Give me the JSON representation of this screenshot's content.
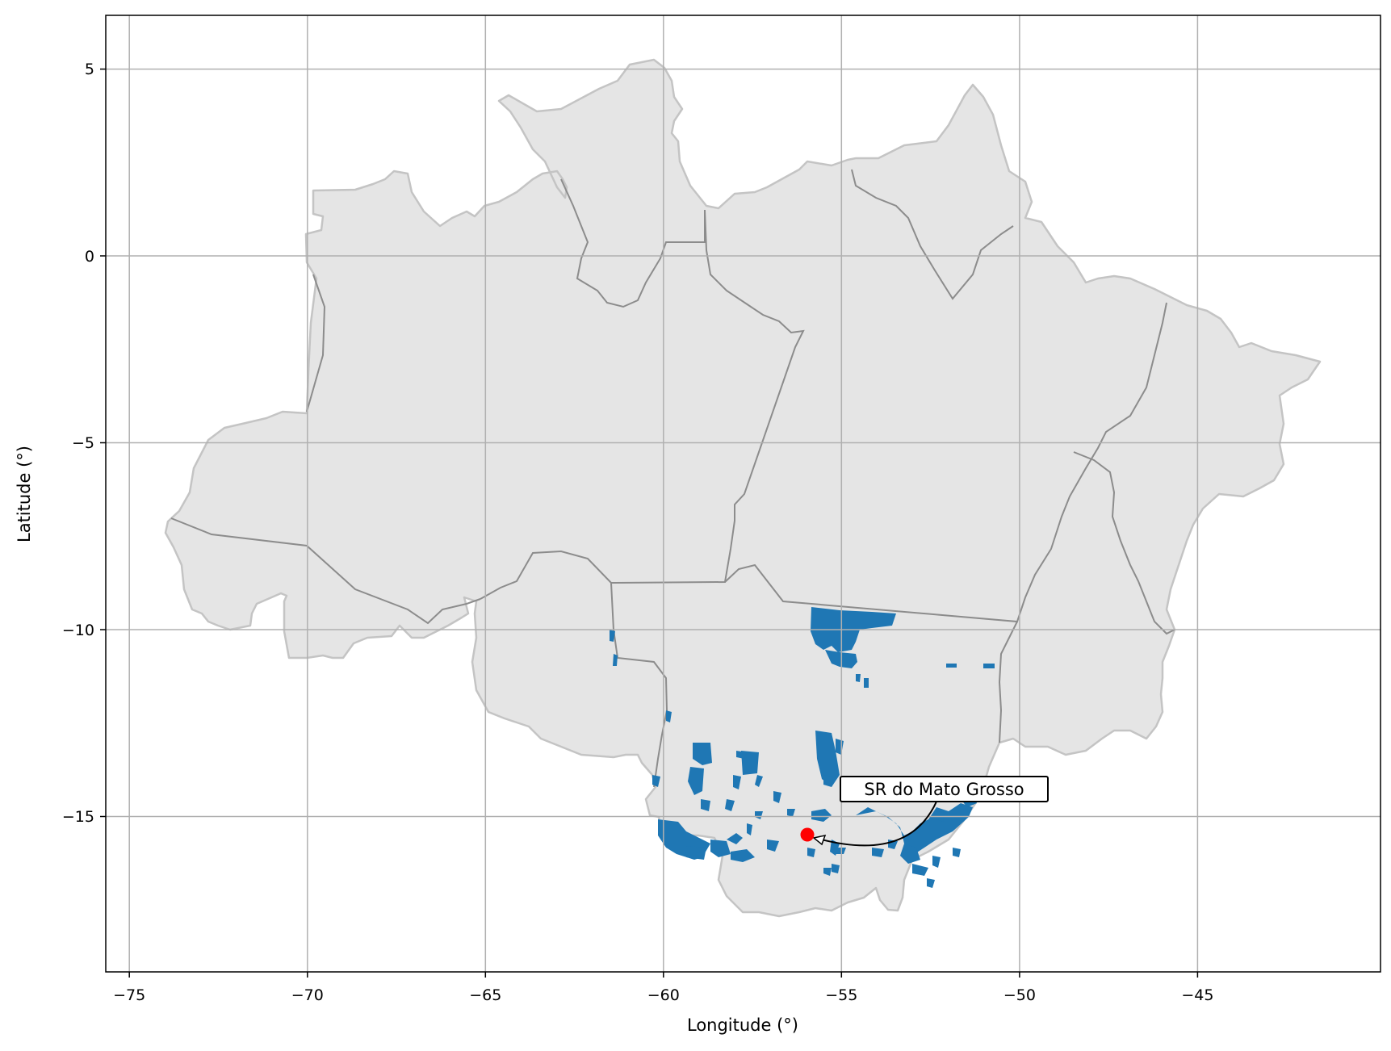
{
  "map": {
    "xlabel": "Longitude (°)",
    "ylabel": "Latitude (°)",
    "xlim": [
      -75.6,
      -39.8
    ],
    "ylim": [
      -19.2,
      6.4
    ],
    "grid": true,
    "x_ticks": [
      -75,
      -70,
      -65,
      -60,
      -55,
      -50,
      -45
    ],
    "x_tick_labels": [
      "−75",
      "−70",
      "−65",
      "−60",
      "−55",
      "−50",
      "−45"
    ],
    "y_ticks": [
      5,
      0,
      -5,
      -10,
      -15
    ],
    "y_tick_labels": [
      "5",
      "0",
      "−5",
      "−10",
      "−15"
    ],
    "colors": {
      "region_fill": "#e5e5e5",
      "region_edge": "#c4c4c4",
      "state_border": "#8c8c8c",
      "highlight": "#1f77b4",
      "point": "#ff0000",
      "grid": "#b0b0b0"
    },
    "point": {
      "name": "SR do Mato Grosso",
      "lon": -56.1,
      "lat": -15.55
    },
    "annotation": {
      "text": "SR do Mato Grosso",
      "lon": -52.7,
      "lat": -14.4
    }
  }
}
